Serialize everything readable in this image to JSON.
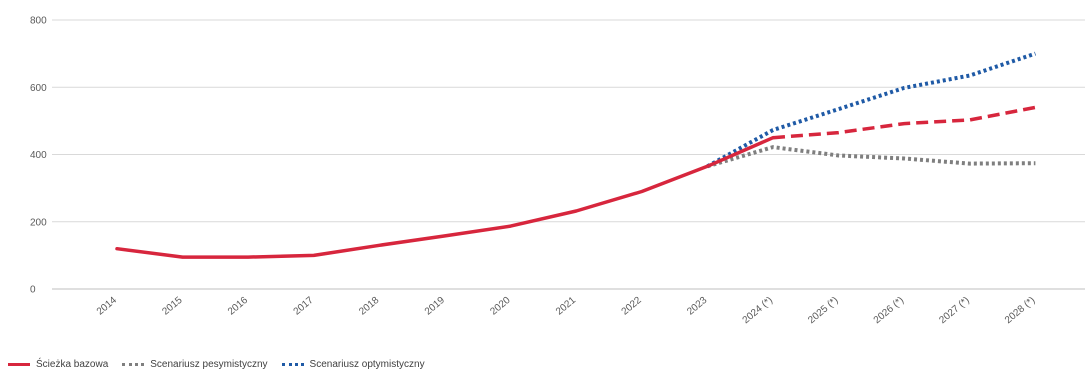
{
  "chart_data": {
    "type": "line",
    "title": "",
    "xlabel": "",
    "ylabel": "",
    "categories": [
      "2014",
      "2015",
      "2016",
      "2017",
      "2018",
      "2019",
      "2020",
      "2021",
      "2022",
      "2023",
      "2024 (*)",
      "2025 (*)",
      "2026 (*)",
      "2027 (*)",
      "2028 (*)"
    ],
    "ylim": [
      0,
      800
    ],
    "yticks": [
      0,
      200,
      400,
      600,
      800
    ],
    "grid": true,
    "legend_position": "bottom-left",
    "series": [
      {
        "name": "Ścieżka bazowa",
        "color": "#d7263d",
        "style": "solid-then-dashed",
        "values": [
          120,
          95,
          95,
          100,
          130,
          158,
          187,
          232,
          290,
          365,
          450,
          465,
          492,
          503,
          540
        ]
      },
      {
        "name": "Scenariusz pesymistyczny",
        "color": "#7f7f7f",
        "style": "dotted",
        "values": [
          null,
          null,
          null,
          null,
          null,
          null,
          null,
          null,
          null,
          365,
          422,
          397,
          388,
          373,
          374
        ]
      },
      {
        "name": "Scenariusz optymistyczny",
        "color": "#1f5aa6",
        "style": "dotted",
        "values": [
          null,
          null,
          null,
          null,
          null,
          null,
          null,
          null,
          null,
          365,
          473,
          535,
          598,
          635,
          700
        ]
      }
    ]
  }
}
